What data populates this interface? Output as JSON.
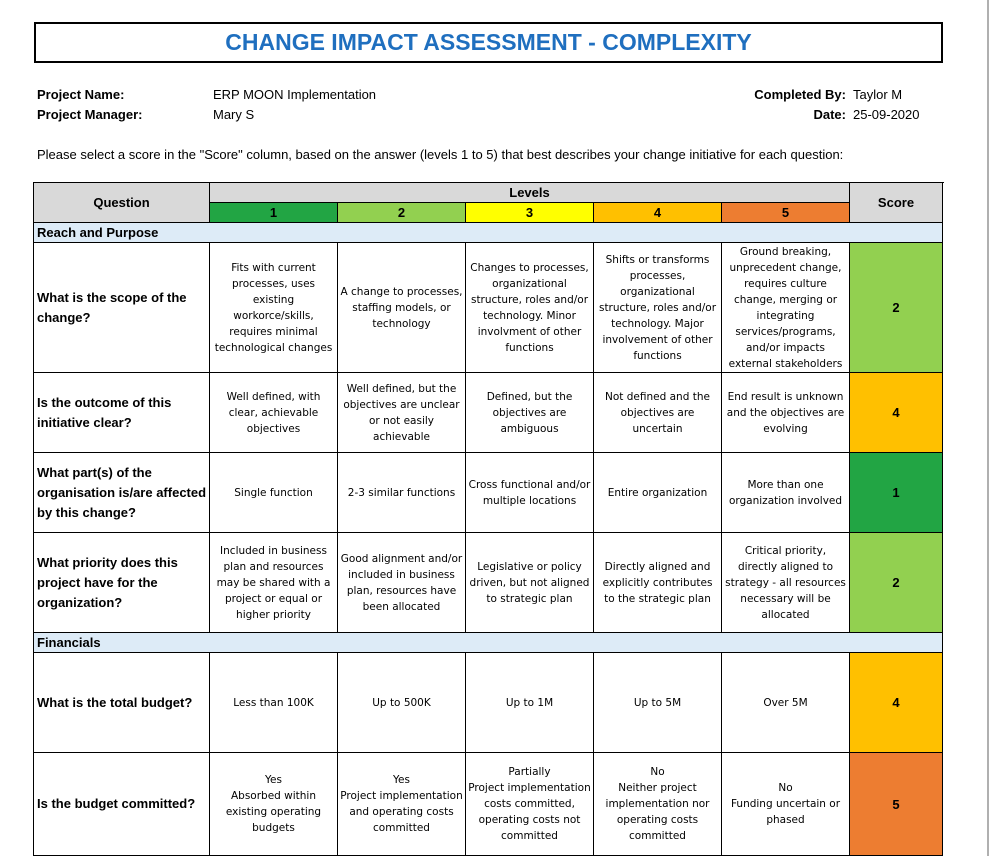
{
  "header": {
    "title": "CHANGE IMPACT ASSESSMENT - COMPLEXITY"
  },
  "project": {
    "name_label": "Project Name:",
    "name": "ERP MOON Implementation",
    "manager_label": "Project Manager:",
    "manager": "Mary S",
    "completed_label": "Completed By:",
    "completed": "Taylor M",
    "date_label": "Date:",
    "date": "25-09-2020"
  },
  "instruction": "Please select a score in the \"Score\" column, based on the answer (levels 1 to 5) that best describes your change initiative for each question:",
  "table": {
    "question_header": "Question",
    "levels_header": "Levels",
    "score_header": "Score",
    "levels": [
      1,
      2,
      3,
      4,
      5
    ],
    "level_colors": [
      "#22a544",
      "#92d050",
      "#ffff00",
      "#ffc000",
      "#ed7d31"
    ],
    "sections": [
      {
        "title": "Reach and Purpose",
        "rows": [
          {
            "question": "What is the scope of the change?",
            "answers": [
              "Fits with current processes, uses existing workorce/skills, requires minimal technological changes",
              "A change to processes, staffing models, or technology",
              "Changes to processes, organizational structure, roles and/or technology. Minor involvment of other functions",
              "Shifts or transforms processes, organizational structure, roles and/or technology. Major involvement of other functions",
              "Ground breaking, unprecedent change, requires culture change, merging or integrating services/programs, and/or impacts external stakeholders"
            ],
            "score": 2
          },
          {
            "question": "Is the outcome of this initiative clear?",
            "answers": [
              "Well defined, with clear, achievable objectives",
              "Well defined, but the objectives are unclear or not easily achievable",
              "Defined, but the objectives are ambiguous",
              "Not defined and the objectives are uncertain",
              "End result is unknown and the objectives are evolving"
            ],
            "score": 4
          },
          {
            "question": "What part(s) of the organisation is/are affected by this change?",
            "answers": [
              "Single function",
              "2-3 similar functions",
              "Cross functional and/or multiple locations",
              "Entire organization",
              "More than one organization involved"
            ],
            "score": 1
          },
          {
            "question": "What priority does this project have for the organization?",
            "answers": [
              "Included in business plan and resources may be shared with a project or equal or higher priority",
              "Good alignment and/or included in business plan, resources have been allocated",
              "Legislative or policy driven, but not aligned to strategic plan",
              "Directly aligned and explicitly contributes to the strategic plan",
              "Critical priority, directly aligned to strategy - all resources necessary will be allocated"
            ],
            "score": 2
          }
        ]
      },
      {
        "title": "Financials",
        "rows": [
          {
            "question": "What is the total budget?",
            "answers": [
              "Less than 100K",
              "Up to 500K",
              "Up to 1M",
              "Up to 5M",
              "Over 5M"
            ],
            "score": 4
          },
          {
            "question": "Is the budget committed?",
            "answers": [
              "Yes\nAbsorbed within existing operating budgets",
              "Yes\nProject implementation and operating costs committed",
              "Partially\nProject implementation costs committed, operating costs not committed",
              "No\nNeither project implementation nor operating costs committed",
              "No\nFunding uncertain or phased"
            ],
            "score": 5
          }
        ]
      }
    ]
  }
}
